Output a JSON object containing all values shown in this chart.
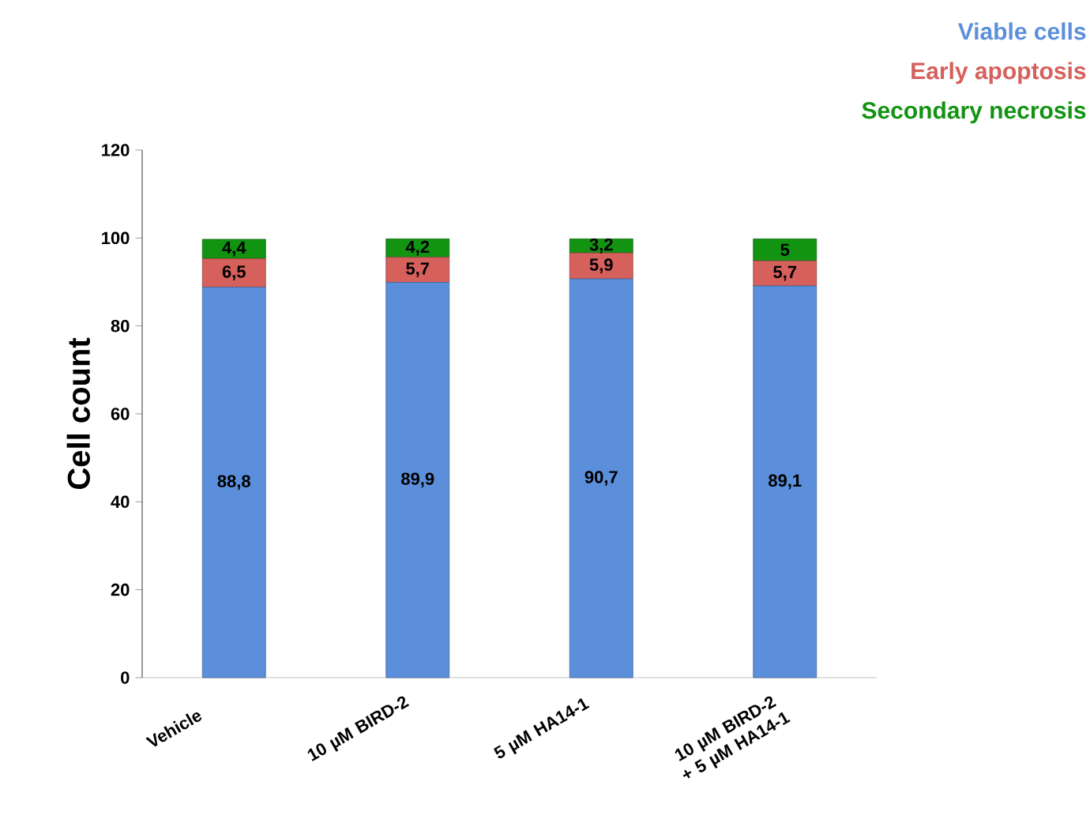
{
  "chart_data": {
    "type": "bar",
    "stacked": true,
    "ylabel": "Cell count",
    "categories": [
      "Vehicle",
      "10 µM BIRD-2",
      "5 µM HA14-1",
      "10 µM BIRD-2 + 5 µM HA14-1"
    ],
    "series": [
      {
        "name": "Viable cells",
        "color": "#5b8fdb",
        "values": [
          88.8,
          89.9,
          90.7,
          89.1
        ],
        "value_labels": [
          "88,8",
          "89,9",
          "90,7",
          "89,1"
        ]
      },
      {
        "name": "Early apoptosis",
        "color": "#d5605c",
        "values": [
          6.5,
          5.7,
          5.9,
          5.7
        ],
        "value_labels": [
          "6,5",
          "5,7",
          "5,9",
          "5,7"
        ]
      },
      {
        "name": "Secondary necrosis",
        "color": "#129312",
        "values": [
          4.4,
          4.2,
          3.2,
          5
        ],
        "value_labels": [
          "4,4",
          "4,2",
          "3,2",
          "5"
        ]
      }
    ],
    "ylim": [
      0,
      120
    ],
    "yticks": [
      0,
      20,
      40,
      60,
      80,
      100,
      120
    ],
    "legend": "top right",
    "grid": false
  }
}
